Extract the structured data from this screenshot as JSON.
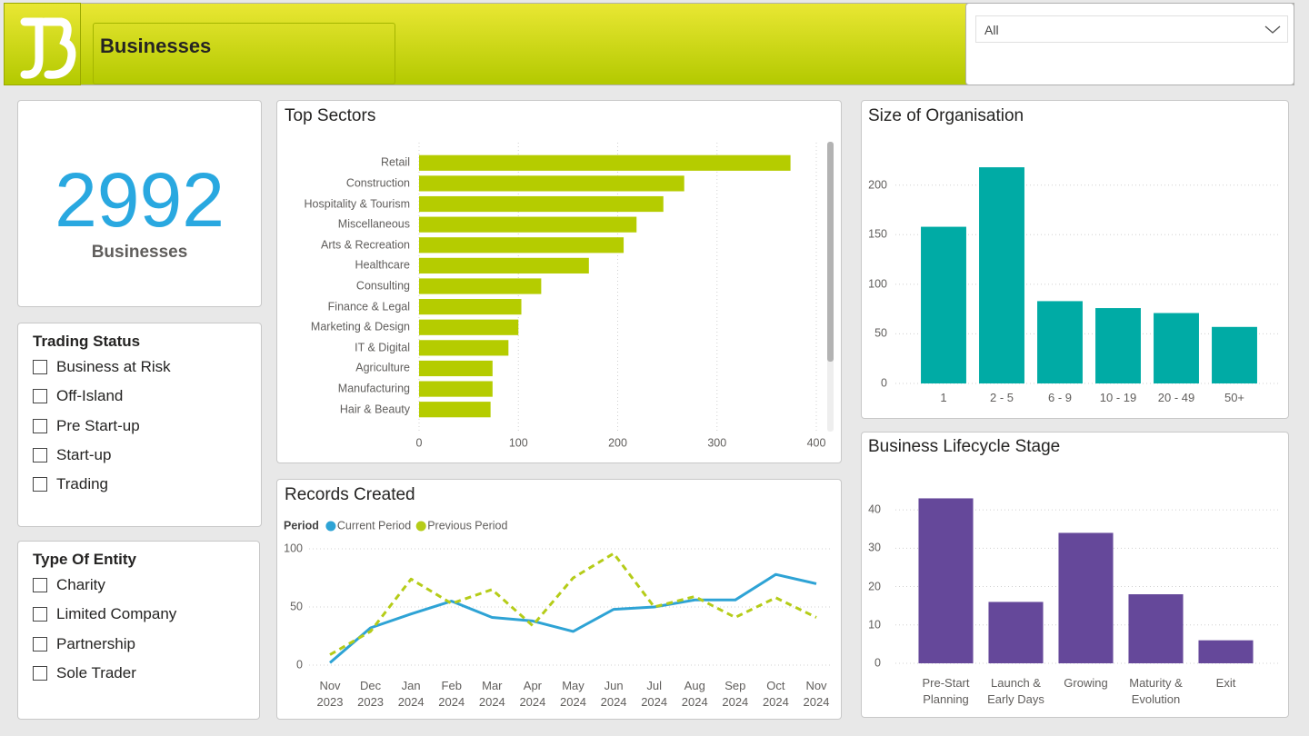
{
  "header": {
    "title": "Businesses",
    "filter_value": "All"
  },
  "kpi": {
    "value": 2992,
    "label": "Businesses"
  },
  "slicers": [
    {
      "title": "Trading Status",
      "items": [
        "Business at Risk",
        "Off-Island",
        "Pre Start-up",
        "Start-up",
        "Trading"
      ]
    },
    {
      "title": "Type Of Entity",
      "items": [
        "Charity",
        "Limited Company",
        "Partnership",
        "Sole Trader"
      ]
    }
  ],
  "chart_data": [
    {
      "type": "bar",
      "orientation": "horizontal",
      "title": "Top Sectors",
      "categories": [
        "Retail",
        "Construction",
        "Hospitality & Tourism",
        "Miscellaneous",
        "Arts & Recreation",
        "Healthcare",
        "Consulting",
        "Finance & Legal",
        "Marketing & Design",
        "IT & Digital",
        "Agriculture",
        "Manufacturing",
        "Hair & Beauty"
      ],
      "values": [
        374,
        267,
        246,
        219,
        206,
        171,
        123,
        103,
        100,
        90,
        74,
        74,
        72
      ],
      "color": "#b5cc00",
      "xlim": [
        0,
        400
      ],
      "xticks": [
        0,
        100,
        200,
        300,
        400
      ],
      "grid": true
    },
    {
      "type": "line",
      "title": "Records Created",
      "categories": [
        "Nov 2023",
        "Dec 2023",
        "Jan 2024",
        "Feb 2024",
        "Mar 2024",
        "Apr 2024",
        "May 2024",
        "Jun 2024",
        "Jul 2024",
        "Aug 2024",
        "Sep 2024",
        "Oct 2024",
        "Nov 2024"
      ],
      "legend_title": "Period",
      "legend": "top-left",
      "series": [
        {
          "name": "Current Period",
          "color": "#2ea3d5",
          "dashed": false,
          "values": [
            2,
            32,
            44,
            55,
            41,
            38,
            29,
            48,
            50,
            56,
            56,
            78,
            70
          ]
        },
        {
          "name": "Previous Period",
          "color": "#b5cc18",
          "dashed": true,
          "values": [
            9,
            29,
            74,
            53,
            65,
            34,
            75,
            96,
            50,
            59,
            41,
            58,
            41
          ]
        }
      ],
      "ylim": [
        0,
        100
      ],
      "yticks": [
        0,
        50,
        100
      ],
      "grid": true
    },
    {
      "type": "bar",
      "orientation": "vertical",
      "title": "Size of Organisation",
      "categories": [
        "1",
        "2 - 5",
        "6 - 9",
        "10 - 19",
        "20 - 49",
        "50+"
      ],
      "values": [
        158,
        218,
        83,
        76,
        71,
        57
      ],
      "color": "#00aba5",
      "ylim": [
        0,
        230
      ],
      "yticks": [
        0,
        50,
        100,
        150,
        200
      ],
      "grid": true
    },
    {
      "type": "bar",
      "orientation": "vertical",
      "title": "Business Lifecycle Stage",
      "categories": [
        "Pre-Start Planning",
        "Launch & Early Days",
        "Growing",
        "Maturity & Evolution",
        "Exit"
      ],
      "values": [
        43,
        16,
        34,
        18,
        6
      ],
      "color": "#65489a",
      "ylim": [
        0,
        45
      ],
      "yticks": [
        0,
        10,
        20,
        30,
        40
      ],
      "grid": true
    }
  ]
}
